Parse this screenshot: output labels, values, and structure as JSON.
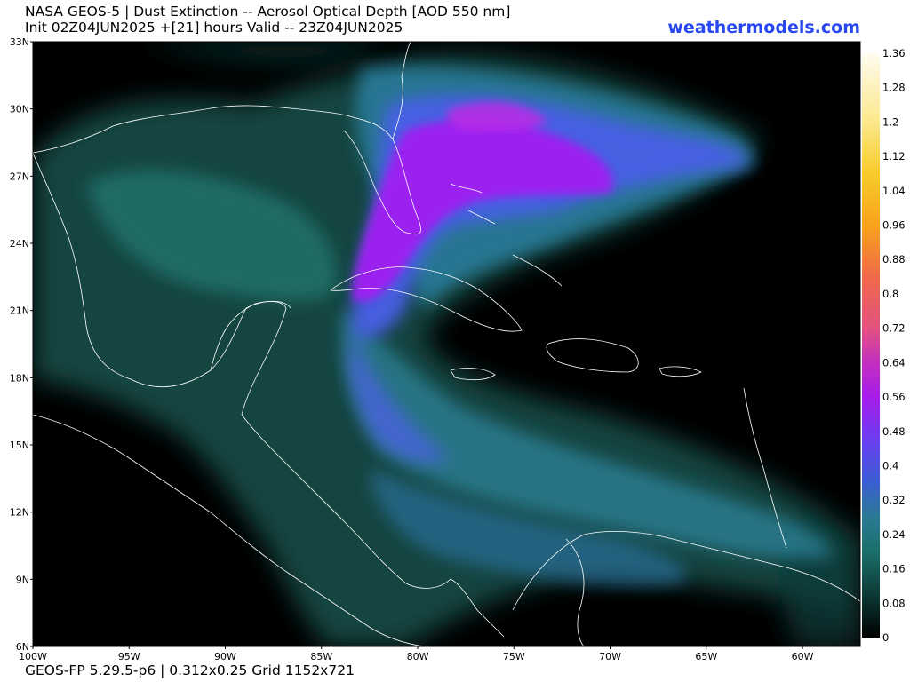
{
  "header": {
    "title_line1": "NASA GEOS-5 | Dust Extinction -- Aerosol Optical Depth [AOD 550 nm]",
    "title_line2": "Init 02Z04JUN2025 +[21] hours Valid -- 23Z04JUN2025",
    "brand": "weathermodels.com"
  },
  "footer": {
    "text": "GEOS-FP 5.29.5-p6 | 0.312x0.25 Grid 1152x721"
  },
  "map": {
    "lat_labels": [
      "33N",
      "30N",
      "27N",
      "24N",
      "21N",
      "18N",
      "15N",
      "12N",
      "9N",
      "6N"
    ],
    "lon_labels": [
      "100W",
      "95W",
      "90W",
      "85W",
      "80W",
      "75W",
      "70W",
      "65W",
      "60W"
    ],
    "lat_range": [
      6,
      33
    ],
    "lon_range": [
      -100,
      -57
    ]
  },
  "colorbar": {
    "labels": [
      "1.36",
      "1.28",
      "1.2",
      "1.12",
      "1.04",
      "0.96",
      "0.88",
      "0.8",
      "0.72",
      "0.64",
      "0.56",
      "0.48",
      "0.4",
      "0.32",
      "0.24",
      "0.16",
      "0.08",
      "0"
    ],
    "min": 0,
    "max": 1.36,
    "stops": [
      {
        "v": 0,
        "c": "#000000"
      },
      {
        "v": 0.1,
        "c": "#0c3a36"
      },
      {
        "v": 0.2,
        "c": "#1b6f6a"
      },
      {
        "v": 0.28,
        "c": "#2a7a94"
      },
      {
        "v": 0.36,
        "c": "#3a5fd0"
      },
      {
        "v": 0.46,
        "c": "#6a3ef0"
      },
      {
        "v": 0.56,
        "c": "#a61de8"
      },
      {
        "v": 0.64,
        "c": "#c22fc0"
      },
      {
        "v": 0.72,
        "c": "#e2527f"
      },
      {
        "v": 0.84,
        "c": "#f06a4a"
      },
      {
        "v": 0.96,
        "c": "#f8a31c"
      },
      {
        "v": 1.08,
        "c": "#f8cb2a"
      },
      {
        "v": 1.2,
        "c": "#fbe88a"
      },
      {
        "v": 1.36,
        "c": "#fffcf0"
      }
    ]
  }
}
